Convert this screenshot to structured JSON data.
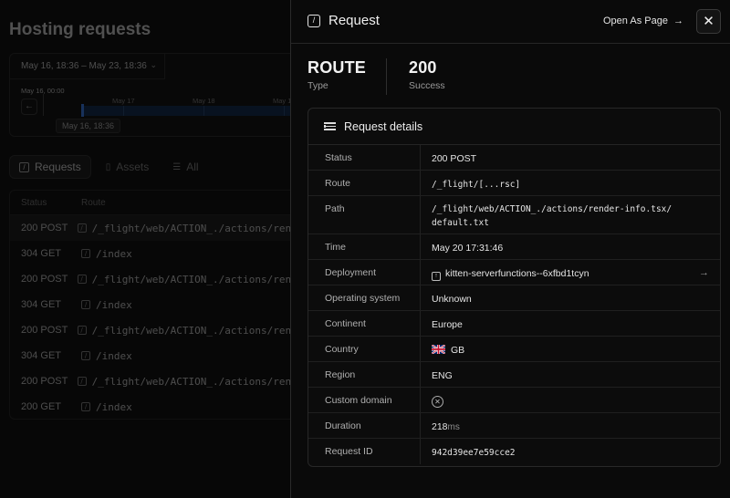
{
  "background": {
    "page_title": "Hosting requests",
    "date_range": "May 16, 18:36 – May 23, 18:36",
    "timeline": {
      "start_label": "May 16, 00:00",
      "ticks": [
        "May 17",
        "May 18",
        "May 1"
      ],
      "tooltip": "May 16, 18:36"
    },
    "tabs": [
      {
        "label": "Requests",
        "icon": "slash-box-icon",
        "active": true
      },
      {
        "label": "Assets",
        "icon": "file-icon",
        "active": false
      },
      {
        "label": "All",
        "icon": "list-icon",
        "active": false
      }
    ],
    "table": {
      "headers": [
        "Status",
        "Route"
      ],
      "rows": [
        {
          "status": "200 POST",
          "route": "/_flight/web/ACTION_./actions/render"
        },
        {
          "status": "304 GET",
          "route": "/index"
        },
        {
          "status": "200 POST",
          "route": "/_flight/web/ACTION_./actions/render"
        },
        {
          "status": "304 GET",
          "route": "/index"
        },
        {
          "status": "200 POST",
          "route": "/_flight/web/ACTION_./actions/render"
        },
        {
          "status": "304 GET",
          "route": "/index"
        },
        {
          "status": "200 POST",
          "route": "/_flight/web/ACTION_./actions/render"
        },
        {
          "status": "200 GET",
          "route": "/index"
        }
      ]
    }
  },
  "drawer": {
    "title": "Request",
    "open_as_page": "Open As Page",
    "summary": [
      {
        "value": "ROUTE",
        "label": "Type"
      },
      {
        "value": "200",
        "label": "Success"
      }
    ],
    "details_title": "Request details",
    "details": {
      "status": {
        "label": "Status",
        "value": "200 POST"
      },
      "route": {
        "label": "Route",
        "value": "/_flight/[...rsc]"
      },
      "path": {
        "label": "Path",
        "value_line1": "/_flight/web/ACTION_./actions/render-info.tsx/",
        "value_line2": "default.txt"
      },
      "time": {
        "label": "Time",
        "value": "May 20 17:31:46"
      },
      "deployment": {
        "label": "Deployment",
        "value": "kitten-serverfunctions--6xfbd1tcyn"
      },
      "os": {
        "label": "Operating system",
        "value": "Unknown"
      },
      "continent": {
        "label": "Continent",
        "value": "Europe"
      },
      "country": {
        "label": "Country",
        "value": "GB",
        "flag": "uk-flag-icon"
      },
      "region": {
        "label": "Region",
        "value": "ENG"
      },
      "custom_domain": {
        "label": "Custom domain",
        "icon": "x-circle-icon"
      },
      "duration": {
        "label": "Duration",
        "value": "218",
        "unit": "ms"
      },
      "request_id": {
        "label": "Request ID",
        "value": "942d39ee7e59cce2"
      }
    }
  }
}
